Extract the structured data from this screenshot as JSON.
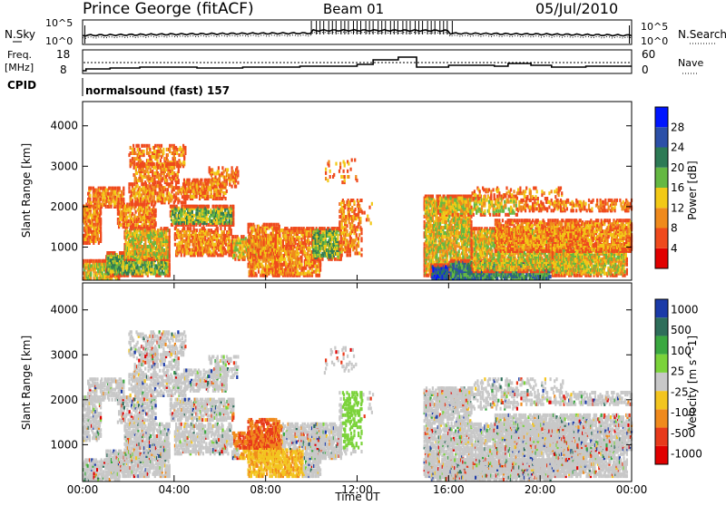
{
  "header": {
    "station": "Prince George (fitACF)",
    "beam": "Beam 01",
    "date": "05/Jul/2010"
  },
  "summary_panels": {
    "nsky_label": "N.Sky",
    "nsearch_label": "N.Search",
    "nsky_ticks": [
      "10^5",
      "10^0"
    ],
    "nsearch_ticks": [
      "10^5",
      "10^0"
    ],
    "freq_label_line1": "Freq.",
    "freq_label_line2": "[MHz]",
    "freq_ticks": [
      "18",
      "8"
    ],
    "nave_label": "Nave",
    "nave_ticks": [
      "60",
      "0"
    ],
    "cpid_label": "CPID",
    "cpid_text": "normalsound (fast) 157"
  },
  "chart_data": [
    {
      "type": "heatmap",
      "name": "power",
      "ylabel": "Slant Range [km]",
      "ylim": [
        180,
        4600
      ],
      "yticks": [
        "1000",
        "2000",
        "3000",
        "4000"
      ],
      "colorbar_label": "Power [dB]",
      "colorbar_ticks": [
        "4",
        "8",
        "12",
        "16",
        "20",
        "24",
        "28"
      ],
      "colorbar_colors": [
        "#0016ff",
        "#2c50a8",
        "#2d7a55",
        "#65b842",
        "#f2c916",
        "#ef8a1c",
        "#ef4a1d",
        "#e00000"
      ]
    },
    {
      "type": "heatmap",
      "name": "velocity",
      "ylabel": "Slant Range [km]",
      "ylim": [
        180,
        4600
      ],
      "yticks": [
        "1000",
        "2000",
        "3000",
        "4000"
      ],
      "colorbar_label": "Velocity [m s^-1]",
      "colorbar_ticks": [
        "1000",
        "500",
        "100",
        "25",
        "-25",
        "-100",
        "-500",
        "-1000"
      ],
      "colorbar_colors": [
        "#1a3aa8",
        "#2e6e5a",
        "#3aa840",
        "#7bd33a",
        "#c8c8c8",
        "#f3c520",
        "#f08a1c",
        "#e83a1b",
        "#e00000"
      ]
    }
  ],
  "x_axis": {
    "ticks": [
      "00:00",
      "04:00",
      "08:00",
      "12:00",
      "16:00",
      "20:00",
      "00:00"
    ],
    "label": "Time UT"
  }
}
